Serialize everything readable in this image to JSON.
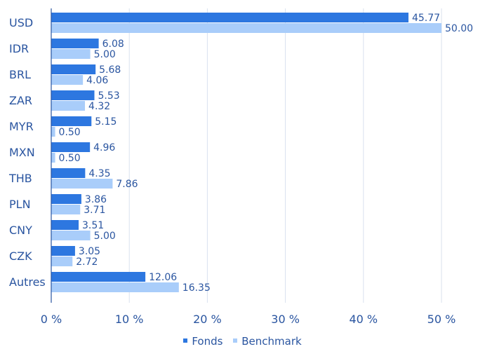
{
  "chart_data": {
    "type": "bar",
    "orientation": "horizontal",
    "categories": [
      "USD",
      "IDR",
      "BRL",
      "ZAR",
      "MYR",
      "MXN",
      "THB",
      "PLN",
      "CNY",
      "CZK",
      "Autres"
    ],
    "series": [
      {
        "name": "Fonds",
        "values": [
          45.77,
          6.08,
          5.68,
          5.53,
          5.15,
          4.96,
          4.35,
          3.86,
          3.51,
          3.05,
          12.06
        ],
        "labels": [
          "45.77",
          "6.08",
          "5.68",
          "5.53",
          "5.15",
          "4.96",
          "4.35",
          "3.86",
          "3.51",
          "3.05",
          "12.06"
        ]
      },
      {
        "name": "Benchmark",
        "values": [
          50.0,
          5.0,
          4.06,
          4.32,
          0.5,
          0.5,
          7.86,
          3.71,
          5.0,
          2.72,
          16.35
        ],
        "labels": [
          "50.00",
          "5.00",
          "4.06",
          "4.32",
          "0.50",
          "0.50",
          "7.86",
          "3.71",
          "5.00",
          "2.72",
          "16.35"
        ]
      }
    ],
    "xlim": [
      0,
      50
    ],
    "xticks": [
      0,
      10,
      20,
      30,
      40,
      50
    ],
    "xtick_labels": [
      "0 %",
      "10 %",
      "20 %",
      "30 %",
      "40 %",
      "50 %"
    ],
    "grid": "vertical",
    "legend_position": "bottom-center",
    "colors": {
      "Fonds": "#2d77e0",
      "Benchmark": "#a9cdfa"
    }
  },
  "legend": {
    "items": [
      "Fonds",
      "Benchmark"
    ]
  }
}
